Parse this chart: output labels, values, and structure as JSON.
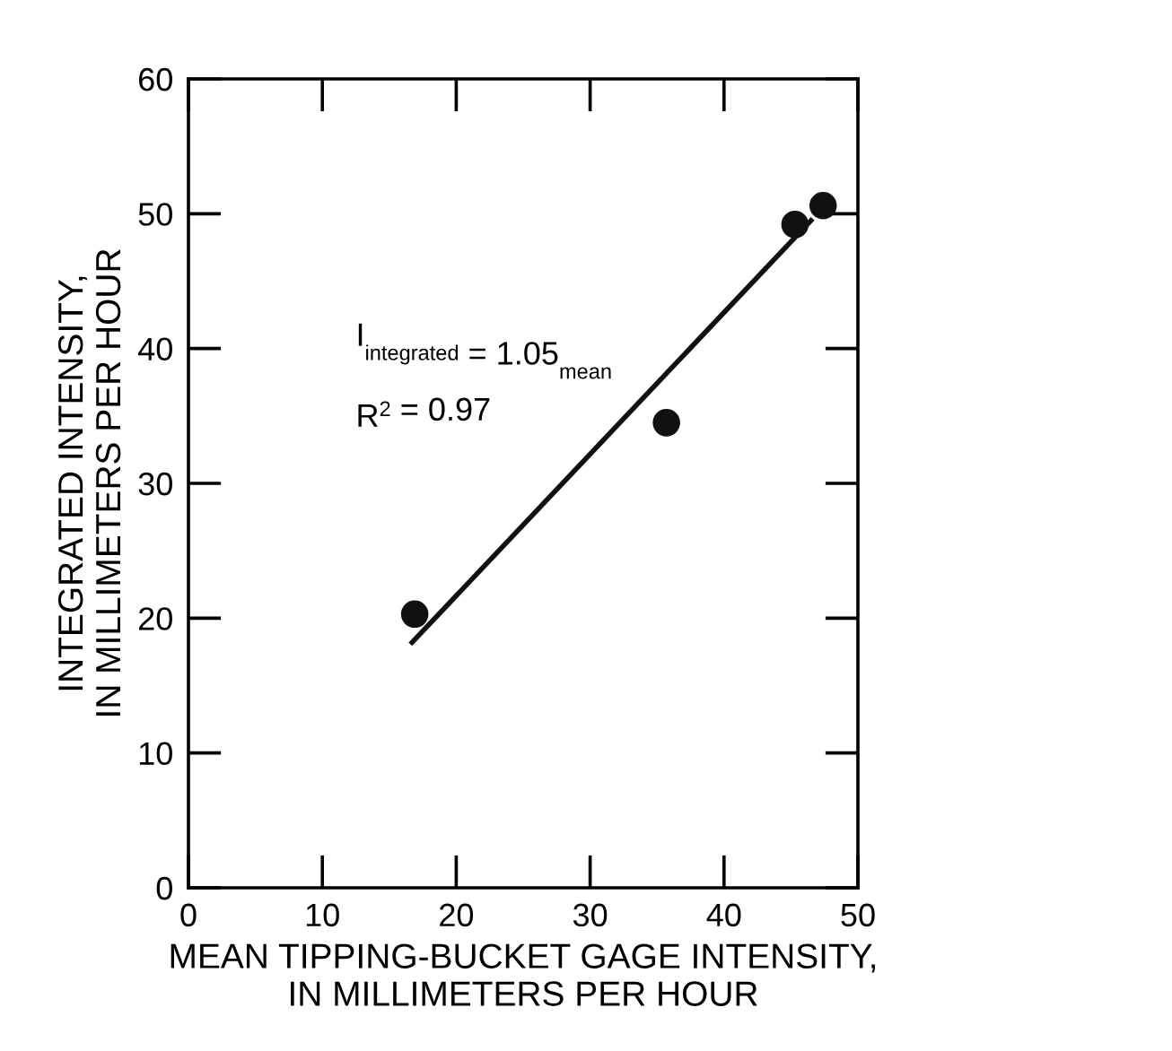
{
  "chart_data": {
    "type": "scatter",
    "xlabel": "MEAN TIPPING-BUCKET GAGE INTENSITY,\nIN MILLIMETERS PER HOUR",
    "ylabel": "INTEGRATED INTENSITY,\nIN MILLIMETERS PER HOUR",
    "xlim": [
      0,
      50
    ],
    "ylim": [
      0,
      60
    ],
    "xticks": [
      0,
      10,
      20,
      30,
      40,
      50
    ],
    "yticks": [
      0,
      10,
      20,
      30,
      40,
      50,
      60
    ],
    "grid": false,
    "legend": false,
    "marker": "circle",
    "series": [
      {
        "color": "#111111",
        "x": [
          16.9,
          35.7,
          45.3,
          47.4
        ],
        "values": [
          20.3,
          34.5,
          49.2,
          50.6
        ]
      },
      {
        "type": "line",
        "color": "#111111",
        "line_style": "solid",
        "marker": "none",
        "x": [
          16.7,
          46.5
        ],
        "values": [
          18.2,
          49.5
        ]
      }
    ],
    "annotations": [
      "I$_{integrated}$ = 1.05$_{mean}$",
      "R$^{2}$ = 0.97"
    ]
  }
}
